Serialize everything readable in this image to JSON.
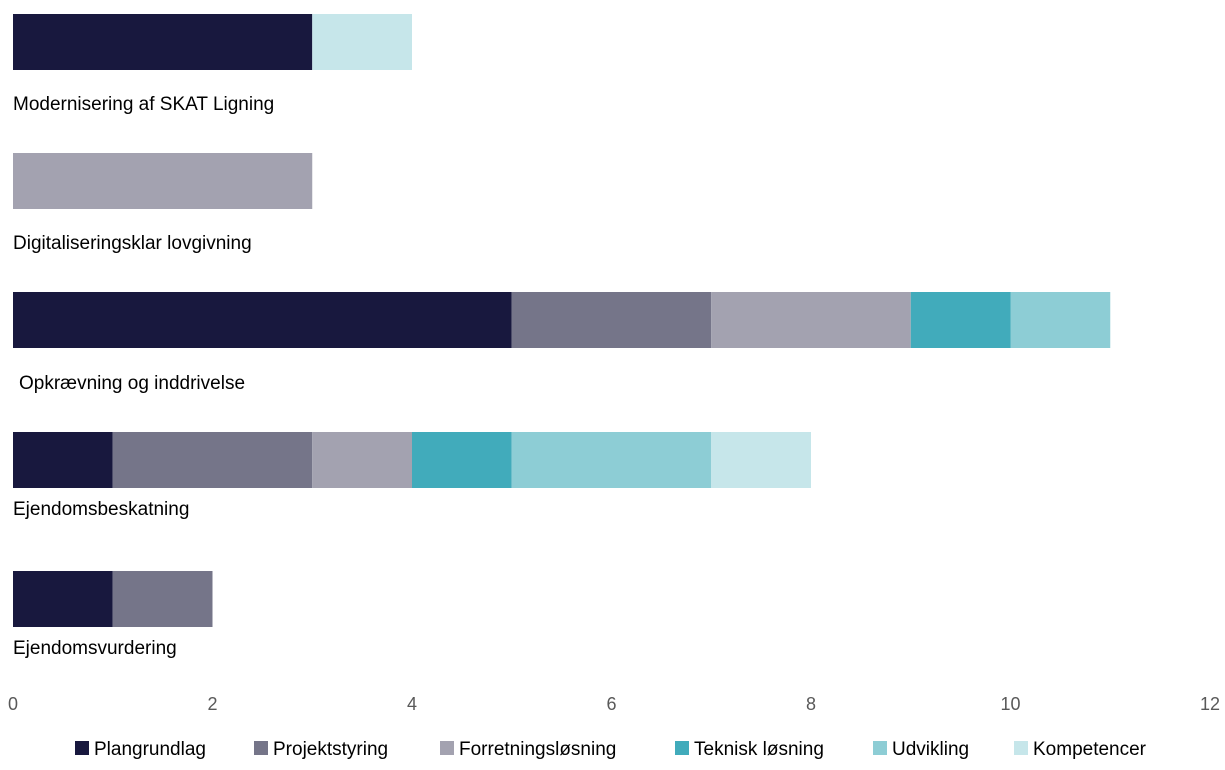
{
  "chart_data": {
    "type": "bar",
    "orientation": "horizontal",
    "stacked": true,
    "categories": [
      "Modernisering af SKAT Ligning",
      "Digitaliseringsklar lovgivning",
      "Opkrævning og inddrivelse",
      "Ejendomsbeskatning",
      "Ejendomsvurdering"
    ],
    "series": [
      {
        "name": "Plangrundlag",
        "color": "#18183e",
        "values": [
          3,
          0,
          5,
          1,
          1
        ]
      },
      {
        "name": "Projektstyring",
        "color": "#757589",
        "values": [
          0,
          0,
          2,
          2,
          1
        ]
      },
      {
        "name": "Forretningsløsning",
        "color": "#a3a2b0",
        "values": [
          0,
          3,
          2,
          1,
          0
        ]
      },
      {
        "name": "Teknisk løsning",
        "color": "#41abbb",
        "values": [
          0,
          0,
          1,
          1,
          0
        ]
      },
      {
        "name": "Udvikling",
        "color": "#8dcdd5",
        "values": [
          0,
          0,
          1,
          2,
          0
        ]
      },
      {
        "name": "Kompetencer",
        "color": "#c6e6ea",
        "values": [
          1,
          0,
          0,
          1,
          0
        ]
      }
    ],
    "xlim": [
      0,
      12
    ],
    "xticks": [
      "0",
      "2",
      "4",
      "6",
      "8",
      "10",
      "12"
    ],
    "xtick_values": [
      0,
      2,
      4,
      6,
      8,
      10,
      12
    ],
    "grid": false,
    "legend_position": "bottom"
  }
}
